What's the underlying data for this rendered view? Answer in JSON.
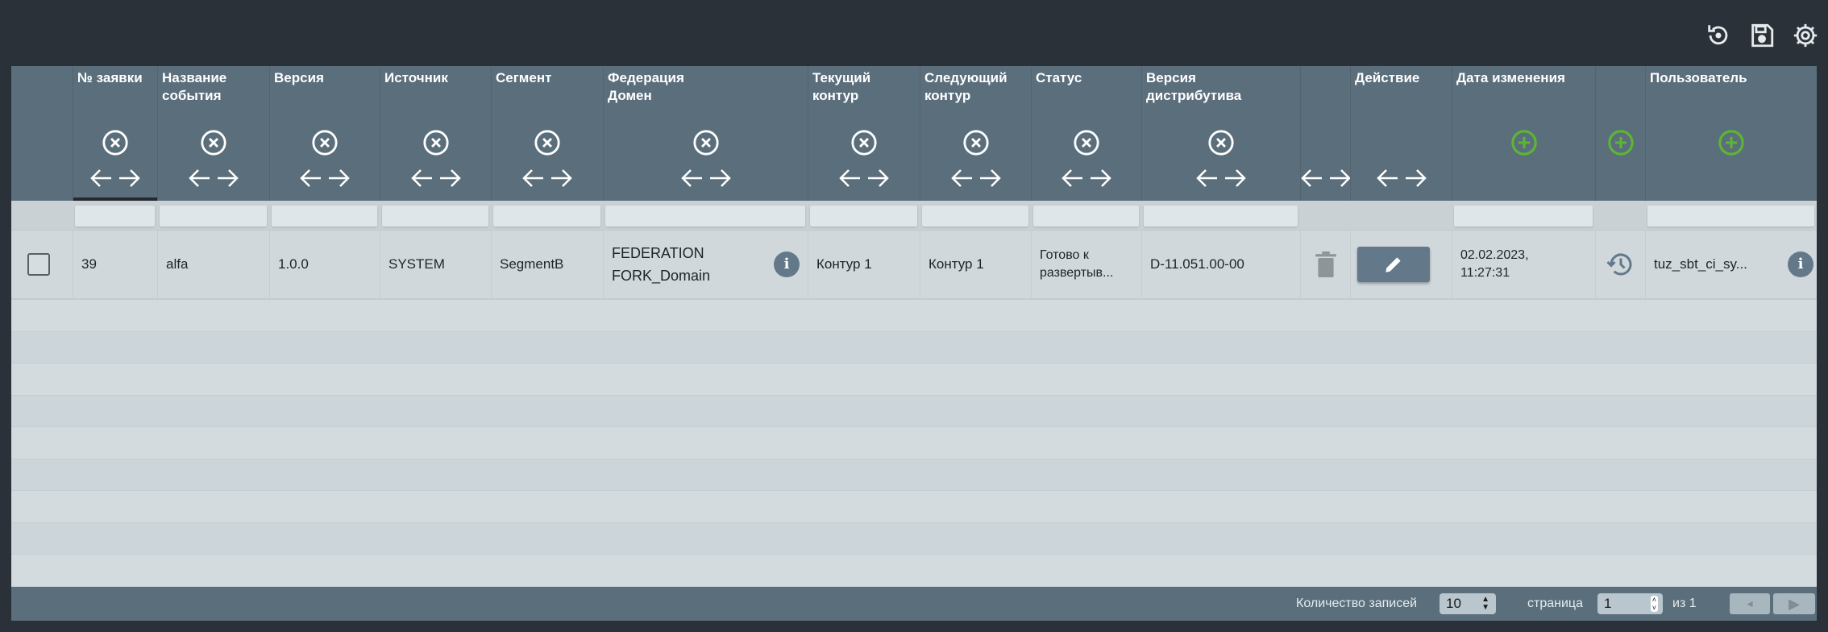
{
  "toolbar": {
    "icons": [
      "reset-icon",
      "save-icon",
      "gear-icon"
    ]
  },
  "columns": [
    {
      "title": "",
      "filter": false
    },
    {
      "title": "№ заявки",
      "icons": "x-arrows",
      "filter": true
    },
    {
      "title": "Название события",
      "icons": "x-arrows",
      "filter": true
    },
    {
      "title": "Версия",
      "icons": "x-arrows",
      "filter": true
    },
    {
      "title": "Источник",
      "icons": "x-arrows",
      "filter": true
    },
    {
      "title": "Сегмент",
      "icons": "x-arrows",
      "filter": true
    },
    {
      "title": "Федерация Домен",
      "icons": "x-arrows",
      "filter": true
    },
    {
      "title": "Текущий контур",
      "icons": "x-arrows",
      "filter": true
    },
    {
      "title": "Следующий контур",
      "icons": "x-arrows",
      "filter": true
    },
    {
      "title": "Статус",
      "icons": "x-arrows",
      "filter": true
    },
    {
      "title": "Версия дистрибутива",
      "icons": "x-arrows",
      "filter": true
    },
    {
      "title": "",
      "icons": "arrows",
      "filter": false
    },
    {
      "title": "Действие",
      "icons": "arrows",
      "filter": false
    },
    {
      "title": "Дата изменения",
      "icons": "plus",
      "filter": true
    },
    {
      "title": "",
      "icons": "plus",
      "filter": false
    },
    {
      "title": "Пользователь",
      "icons": "plus",
      "filter": true
    }
  ],
  "row": {
    "id": "39",
    "event": "alfa",
    "version": "1.0.0",
    "source": "SYSTEM",
    "segment": "SegmentB",
    "federation": "FEDERATION",
    "domain": "FORK_Domain",
    "current": "Контур 1",
    "next": "Контур 1",
    "status": "Готово к развертыв...",
    "distr": "D-11.051.00-00",
    "date": "02.02.2023,",
    "time": "11:27:31",
    "user": "tuz_sbt_ci_sy..."
  },
  "footer": {
    "records_label": "Количество записей",
    "records_value": "10",
    "page_label": "страница",
    "page_value": "1",
    "of_label": "из 1"
  },
  "colors": {
    "header": "#5b6e7b",
    "background": "#2a3139",
    "add": "#5db534",
    "row": "#d0d8dc"
  }
}
